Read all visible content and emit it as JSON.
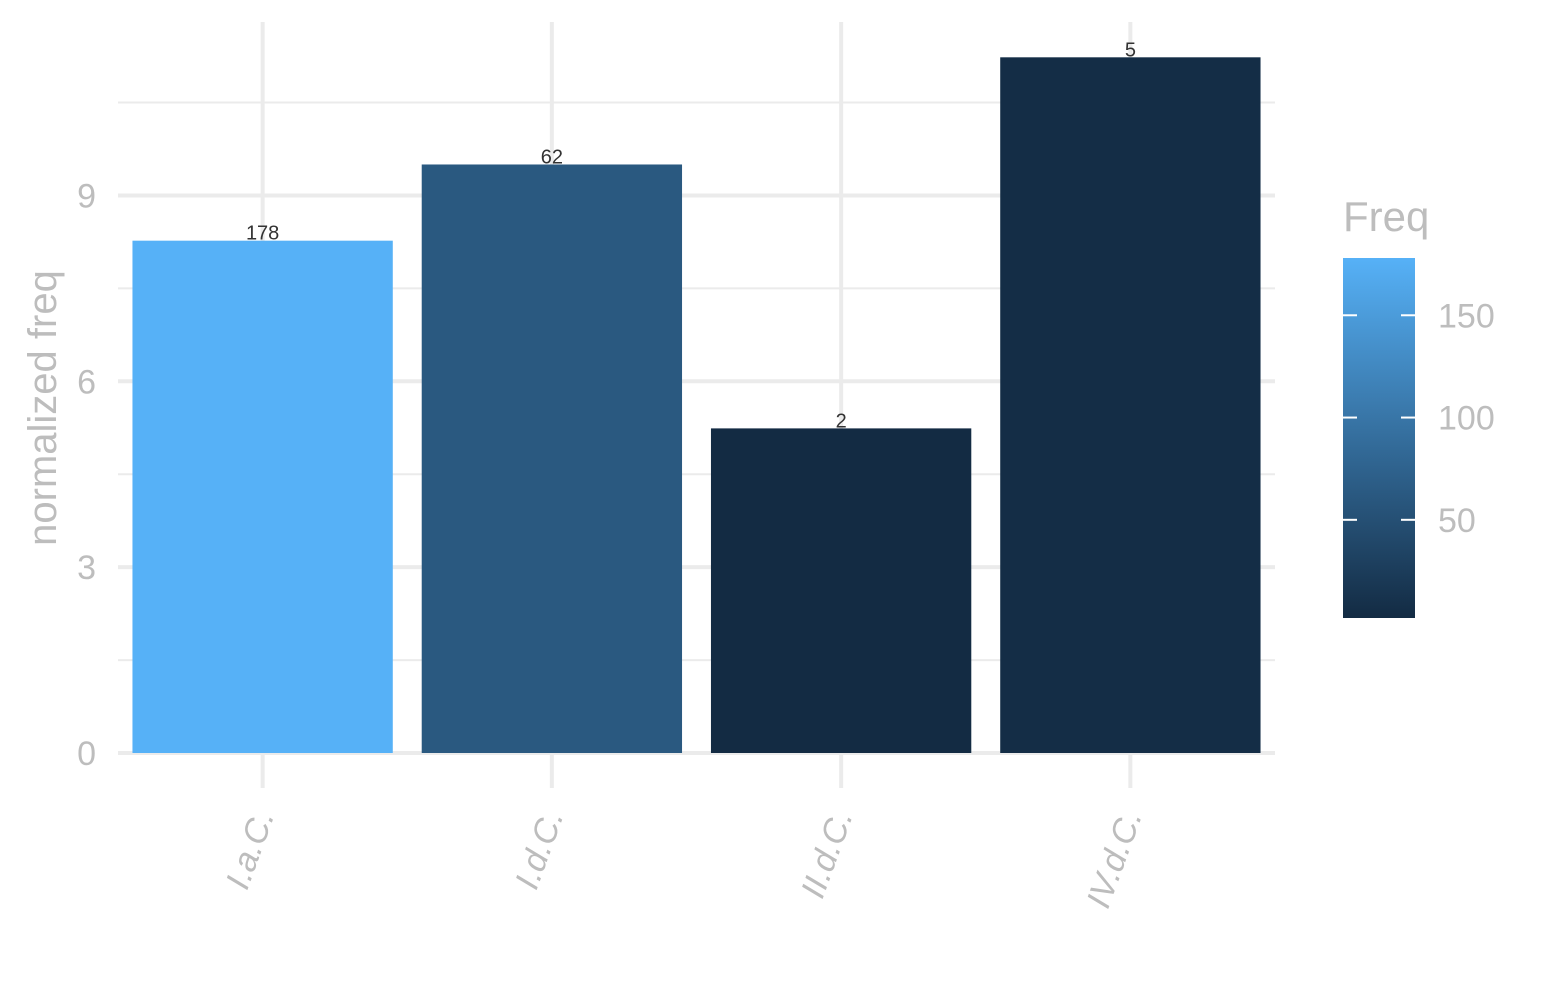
{
  "chart_data": {
    "type": "bar",
    "categories": [
      "I.a.C.",
      "I.d.C.",
      "II.d.C.",
      "IV.d.C."
    ],
    "values": [
      8.27,
      9.5,
      5.24,
      11.23
    ],
    "fill_values": [
      178,
      62,
      2,
      5
    ],
    "bar_labels": [
      "178",
      "62",
      "2",
      "5"
    ],
    "title": "",
    "xlabel": "",
    "ylabel": "normalized freq",
    "ylim": [
      0,
      11.8
    ],
    "y_ticks": [
      0,
      3,
      6,
      9
    ],
    "y_tick_labels": [
      "0",
      "3",
      "6",
      "9"
    ],
    "grid": true,
    "legend": {
      "title": "Freq",
      "placement": "right",
      "range": [
        2,
        178
      ],
      "ticks": [
        50,
        100,
        150
      ],
      "tick_labels": [
        "50",
        "100",
        "150"
      ],
      "color_low": "#132B43",
      "color_high": "#56B1F7"
    },
    "colors": {
      "grid": "#ebebeb",
      "text": "#bdbdbd",
      "bar_label": "#333333"
    }
  }
}
